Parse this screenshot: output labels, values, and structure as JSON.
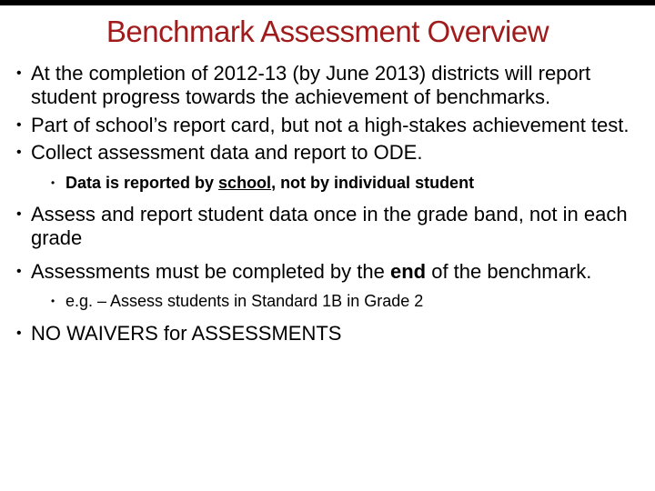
{
  "title": {
    "text": "Benchmark Assessment Overview",
    "color": "#a01b1b",
    "fontsize": 33
  },
  "topbar_color": "#000000",
  "bullets": {
    "b1": "At the completion of 2012-13 (by June 2013) districts will report student progress towards the achievement of benchmarks.",
    "b2_pre": "Part of school",
    "b2_apos": "’",
    "b2_post": "s report card, but not a high-stakes achievement test.",
    "b3": "Collect assessment data and report to ODE.",
    "b3_sub_pre": "Data is reported by ",
    "b3_sub_underlined": "school",
    "b3_sub_post": ", not by individual student",
    "b4": "Assess and report student data once in the grade band, not in each grade",
    "b5_pre": "Assessments must be completed by the ",
    "b5_bold": "end",
    "b5_post": " of the benchmark.",
    "b5_sub": "e.g. – Assess students in Standard 1B in Grade 2",
    "b6": "NO WAIVERS for ASSESSMENTS"
  },
  "body_fontsize_level1": 22,
  "body_fontsize_level2": 18,
  "text_color": "#000000"
}
